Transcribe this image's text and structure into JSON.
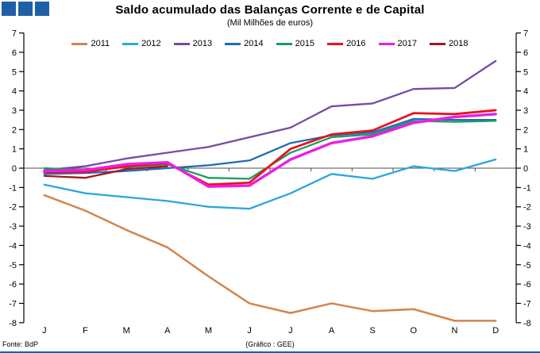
{
  "header": {
    "title": "Saldo acumulado das Balanças Corrente e de Capital",
    "subtitle": "(Mil Milhões de euros)"
  },
  "footer": {
    "source": "Fonte: BdP",
    "credit": "(Gráfico : GEE)"
  },
  "colors": {
    "brand_blue": "#1e5fa8",
    "axis": "#000000",
    "zero_line": "#4d4d4d"
  },
  "chart_data": {
    "type": "line",
    "title": "Saldo acumulado das Balanças Corrente e de Capital",
    "subtitle": "(Mil Milhões de euros)",
    "categories": [
      "J",
      "F",
      "M",
      "A",
      "M",
      "J",
      "J",
      "A",
      "S",
      "O",
      "N",
      "D"
    ],
    "y_ticks": [
      7,
      6,
      5,
      4,
      3,
      2,
      1,
      0,
      -1,
      -2,
      -3,
      -4,
      -5,
      -6,
      -7,
      -8
    ],
    "ylim": [
      -8,
      7
    ],
    "grid": false,
    "legend_position": "top",
    "series": [
      {
        "name": "2011",
        "color": "#d2854e",
        "values": [
          -1.4,
          -2.2,
          -3.2,
          -4.1,
          -5.6,
          -7.0,
          -7.5,
          -7.0,
          -7.4,
          -7.3,
          -7.9,
          -7.9
        ]
      },
      {
        "name": "2012",
        "color": "#2aa7dc",
        "values": [
          -0.85,
          -1.3,
          -1.5,
          -1.7,
          -2.0,
          -2.1,
          -1.3,
          -0.3,
          -0.55,
          0.1,
          -0.15,
          0.45
        ]
      },
      {
        "name": "2013",
        "color": "#744da0",
        "values": [
          -0.1,
          0.1,
          0.5,
          0.8,
          1.1,
          1.6,
          2.1,
          3.2,
          3.35,
          4.1,
          4.15,
          5.55
        ]
      },
      {
        "name": "2014",
        "color": "#1f6cb4",
        "values": [
          -0.3,
          -0.25,
          -0.15,
          0.0,
          0.15,
          0.4,
          1.3,
          1.7,
          1.85,
          2.55,
          2.5,
          2.5
        ]
      },
      {
        "name": "2015",
        "color": "#169e64",
        "values": [
          0.0,
          -0.1,
          0.05,
          0.2,
          -0.5,
          -0.55,
          0.8,
          1.6,
          1.75,
          2.45,
          2.4,
          2.45
        ]
      },
      {
        "name": "2016",
        "color": "#e8131c",
        "values": [
          -0.2,
          -0.2,
          0.1,
          0.25,
          -0.85,
          -0.75,
          1.0,
          1.75,
          1.95,
          2.85,
          2.8,
          3.0
        ]
      },
      {
        "name": "2017",
        "color": "#ef1ce4",
        "values": [
          -0.15,
          -0.1,
          0.2,
          0.3,
          -0.95,
          -0.9,
          0.45,
          1.3,
          1.65,
          2.35,
          2.65,
          2.8
        ]
      },
      {
        "name": "2018",
        "color": "#9e1a1f",
        "values": [
          -0.4,
          -0.5,
          -0.05,
          0.1,
          null,
          null,
          null,
          null,
          null,
          null,
          null,
          null
        ]
      }
    ]
  }
}
